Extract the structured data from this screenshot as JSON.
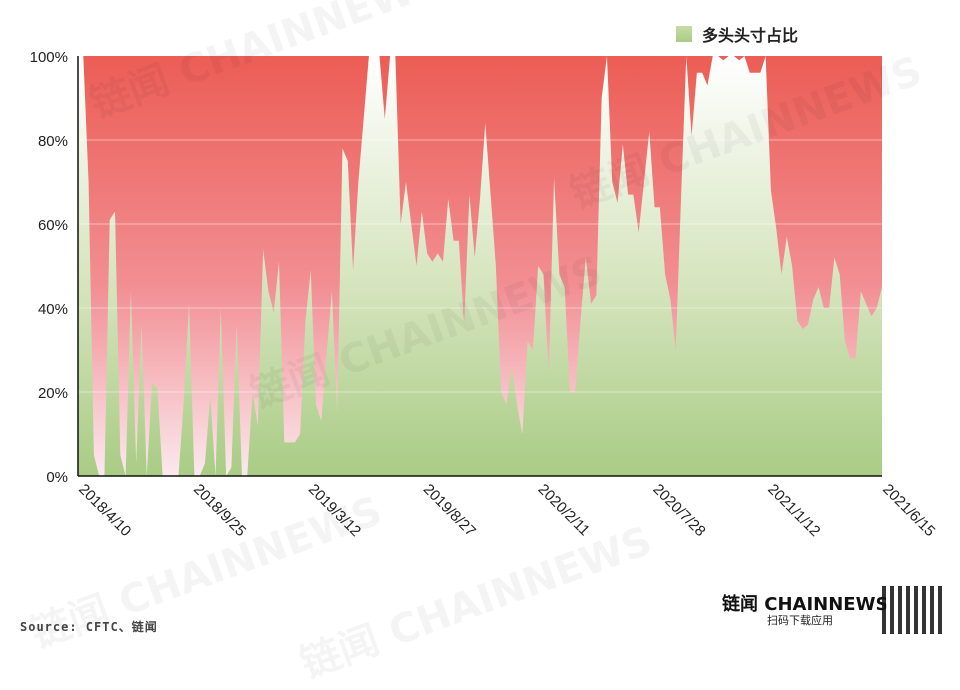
{
  "legend": {
    "label": "多头头寸占比",
    "color": "#b5d38f"
  },
  "source": "Source: CFTC、链闻",
  "brand": {
    "name": "链闻 CHAINNEWS",
    "sub": "扫码下载应用"
  },
  "watermark_text": "链闻 CHAINNEWS",
  "colors": {
    "fill_top": "#ffffff",
    "fill_bottom": "#a9cc85",
    "bg_top": "#ec5d55",
    "bg_bottom": "#fbe9ee"
  },
  "chart_data": {
    "type": "area",
    "title": "",
    "xlabel": "",
    "ylabel": "",
    "ylim": [
      0,
      100
    ],
    "y_ticks": [
      "0%",
      "20%",
      "40%",
      "60%",
      "80%",
      "100%"
    ],
    "x_ticks": [
      "2018/4/10",
      "2018/9/25",
      "2019/3/12",
      "2019/8/27",
      "2020/2/11",
      "2020/7/28",
      "2021/1/12",
      "2021/6/15"
    ],
    "series": [
      {
        "name": "多头头寸占比",
        "values": [
          100,
          100,
          70,
          5,
          0,
          0,
          61,
          63,
          5,
          0,
          44,
          3,
          36,
          0,
          22,
          21,
          0,
          0,
          0,
          0,
          18,
          41,
          0,
          0,
          3,
          19,
          0,
          40,
          0,
          2,
          36,
          0,
          0,
          20,
          12,
          54,
          44,
          39,
          51,
          8,
          8,
          8,
          10,
          37,
          49,
          17,
          13,
          29,
          44,
          15,
          78,
          75,
          49,
          70,
          85,
          100,
          100,
          100,
          85,
          100,
          100,
          60,
          70,
          60,
          50,
          63,
          53,
          51,
          53,
          51,
          66,
          56,
          56,
          36,
          67,
          52,
          66,
          84,
          67,
          50,
          20,
          17,
          26,
          17,
          10,
          32,
          30,
          50,
          48,
          24,
          71,
          48,
          45,
          20,
          20,
          37,
          52,
          41,
          43,
          90,
          100,
          70,
          65,
          79,
          67,
          67,
          58,
          70,
          82,
          64,
          64,
          48,
          42,
          30,
          66,
          100,
          81,
          96,
          96,
          93,
          100,
          100,
          99,
          100,
          100,
          99,
          100,
          96,
          96,
          96,
          100,
          68,
          59,
          48,
          57,
          50,
          37,
          35,
          36,
          42,
          45,
          40,
          40,
          52,
          48,
          32,
          28,
          28,
          44,
          41,
          38,
          40,
          45
        ]
      }
    ],
    "grid": true
  }
}
